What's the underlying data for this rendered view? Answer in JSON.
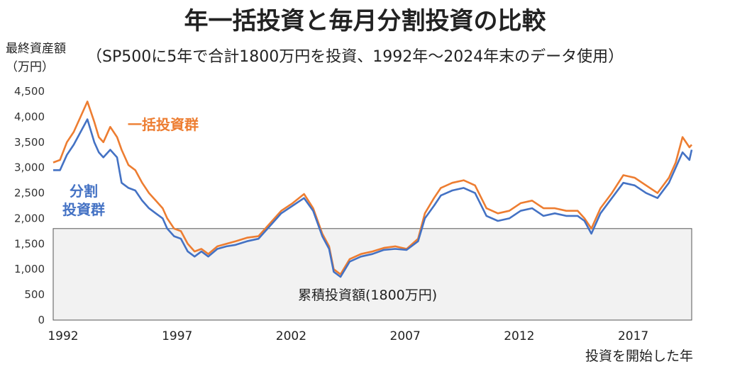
{
  "chart_data": {
    "type": "line",
    "title": "年一括投資と毎月分割投資の比較",
    "subtitle": "（SP500に5年で合計1800万円を投資、1992年～2024年末のデータ使用）",
    "ylabel_line1": "最終資産額",
    "ylabel_line2": "（万円）",
    "xlabel": "投資を開始した年",
    "ylim": [
      0,
      4500
    ],
    "xlim": [
      1992,
      2020
    ],
    "yticks": [
      "0",
      "500",
      "1,000",
      "1,500",
      "2,000",
      "2,500",
      "3,000",
      "3,500",
      "4,000",
      "4,500"
    ],
    "ytick_values": [
      0,
      500,
      1000,
      1500,
      2000,
      2500,
      3000,
      3500,
      4000,
      4500
    ],
    "xticks": [
      "1992",
      "1997",
      "2002",
      "2007",
      "2012",
      "2017"
    ],
    "xtick_values": [
      1992,
      1997,
      2002,
      2007,
      2012,
      2017
    ],
    "baseline": {
      "value": 1800,
      "label": "累積投資額(1800万円)"
    },
    "series": [
      {
        "name": "一括投資群",
        "color": "#ED7D31",
        "x": [
          1992.0,
          1992.3,
          1992.6,
          1992.9,
          1993.2,
          1993.5,
          1993.8,
          1994.0,
          1994.2,
          1994.5,
          1994.8,
          1995.0,
          1995.3,
          1995.6,
          1995.9,
          1996.2,
          1996.5,
          1996.8,
          1997.0,
          1997.3,
          1997.6,
          1997.9,
          1998.2,
          1998.5,
          1998.8,
          1999.2,
          1999.6,
          2000.0,
          2000.5,
          2001.0,
          2001.5,
          2002.0,
          2002.5,
          2003.0,
          2003.4,
          2003.8,
          2004.1,
          2004.3,
          2004.6,
          2005.0,
          2005.5,
          2006.0,
          2006.5,
          2007.0,
          2007.5,
          2008.0,
          2008.3,
          2008.7,
          2009.0,
          2009.5,
          2010.0,
          2010.5,
          2011.0,
          2011.5,
          2012.0,
          2012.5,
          2013.0,
          2013.5,
          2014.0,
          2014.5,
          2015.0,
          2015.3,
          2015.6,
          2016.0,
          2016.5,
          2017.0,
          2017.5,
          2018.0,
          2018.5,
          2019.0,
          2019.3,
          2019.6,
          2019.9,
          2020.0
        ],
        "values": [
          3100,
          3150,
          3500,
          3700,
          4000,
          4300,
          3900,
          3600,
          3500,
          3800,
          3600,
          3350,
          3050,
          2950,
          2700,
          2500,
          2350,
          2200,
          2000,
          1800,
          1750,
          1500,
          1350,
          1400,
          1300,
          1450,
          1500,
          1550,
          1620,
          1650,
          1900,
          2150,
          2300,
          2480,
          2200,
          1700,
          1450,
          1000,
          900,
          1200,
          1300,
          1350,
          1420,
          1450,
          1400,
          1600,
          2100,
          2400,
          2600,
          2700,
          2750,
          2650,
          2200,
          2100,
          2150,
          2300,
          2350,
          2200,
          2200,
          2150,
          2150,
          2000,
          1800,
          2200,
          2500,
          2850,
          2800,
          2650,
          2500,
          2800,
          3100,
          3600,
          3400,
          3450
        ]
      },
      {
        "name": "分割投資群",
        "color": "#4472C4",
        "x": [
          1992.0,
          1992.3,
          1992.6,
          1992.9,
          1993.2,
          1993.5,
          1993.8,
          1994.0,
          1994.2,
          1994.5,
          1994.8,
          1995.0,
          1995.3,
          1995.6,
          1995.9,
          1996.2,
          1996.5,
          1996.8,
          1997.0,
          1997.3,
          1997.6,
          1997.9,
          1998.2,
          1998.5,
          1998.8,
          1999.2,
          1999.6,
          2000.0,
          2000.5,
          2001.0,
          2001.5,
          2002.0,
          2002.5,
          2003.0,
          2003.4,
          2003.8,
          2004.1,
          2004.3,
          2004.6,
          2005.0,
          2005.5,
          2006.0,
          2006.5,
          2007.0,
          2007.5,
          2008.0,
          2008.3,
          2008.7,
          2009.0,
          2009.5,
          2010.0,
          2010.5,
          2011.0,
          2011.5,
          2012.0,
          2012.5,
          2013.0,
          2013.5,
          2014.0,
          2014.5,
          2015.0,
          2015.3,
          2015.6,
          2016.0,
          2016.5,
          2017.0,
          2017.5,
          2018.0,
          2018.5,
          2019.0,
          2019.3,
          2019.6,
          2019.9,
          2020.0
        ],
        "values": [
          2950,
          2950,
          3250,
          3450,
          3700,
          3950,
          3500,
          3300,
          3200,
          3350,
          3200,
          2700,
          2600,
          2550,
          2350,
          2200,
          2100,
          2000,
          1800,
          1650,
          1600,
          1350,
          1250,
          1350,
          1250,
          1400,
          1450,
          1480,
          1550,
          1600,
          1850,
          2100,
          2250,
          2400,
          2150,
          1650,
          1400,
          950,
          850,
          1150,
          1250,
          1300,
          1380,
          1400,
          1380,
          1550,
          2000,
          2250,
          2450,
          2550,
          2600,
          2500,
          2050,
          1950,
          2000,
          2150,
          2200,
          2050,
          2100,
          2050,
          2050,
          1950,
          1700,
          2100,
          2400,
          2700,
          2650,
          2500,
          2400,
          2700,
          3000,
          3300,
          3150,
          3350
        ]
      }
    ]
  }
}
